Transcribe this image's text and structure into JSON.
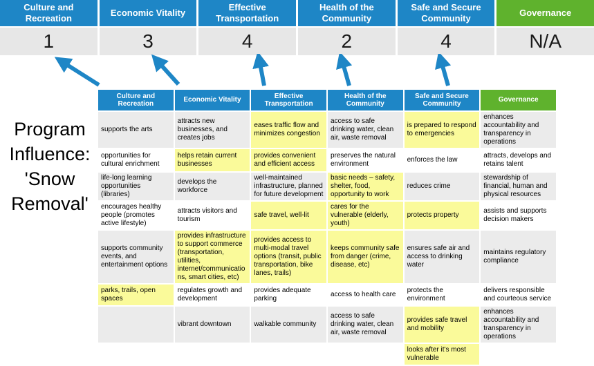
{
  "title": "Program Influence: 'Snow Removal'",
  "colors": {
    "header_blue": "#1E86C6",
    "governance_green": "#5FB22D",
    "highlight_yellow": "#FAFA9A",
    "stripe_gray": "#EBEBEB",
    "score_band_gray": "#E7E7E7",
    "arrow_blue": "#1E86C6"
  },
  "scoreband": {
    "columns": [
      {
        "label": "Culture and Recreation",
        "score": "1"
      },
      {
        "label": "Economic Vitality",
        "score": "3"
      },
      {
        "label": "Effective Transportation",
        "score": "4"
      },
      {
        "label": "Health of the Community",
        "score": "2"
      },
      {
        "label": "Safe and Secure Community",
        "score": "4"
      },
      {
        "label": "Governance",
        "score": "N/A"
      }
    ]
  },
  "table": {
    "headers": [
      {
        "label": "Culture and Recreation",
        "green": false
      },
      {
        "label": "Economic Vitality",
        "green": false
      },
      {
        "label": "Effective Transportation",
        "green": false
      },
      {
        "label": "Health of the Community",
        "green": false
      },
      {
        "label": "Safe and Secure Community",
        "green": false
      },
      {
        "label": "Governance",
        "green": true
      }
    ],
    "rows": [
      [
        {
          "t": "supports the arts"
        },
        {
          "t": "attracts new businesses, and creates jobs"
        },
        {
          "t": "eases traffic flow and minimizes congestion",
          "hl": true
        },
        {
          "t": "access to safe drinking water, clean air, waste removal"
        },
        {
          "t": "is prepared to respond to emergencies",
          "hl": true
        },
        {
          "t": "enhances accountability and transparency in operations"
        }
      ],
      [
        {
          "t": "opportunities for cultural enrichment"
        },
        {
          "t": "helps retain current businesses",
          "hl": true
        },
        {
          "t": "provides convenient and efficient access",
          "hl": true
        },
        {
          "t": "preserves the natural environment"
        },
        {
          "t": "enforces the law"
        },
        {
          "t": "attracts, develops and retains talent"
        }
      ],
      [
        {
          "t": "life-long learning opportunities (libraries)"
        },
        {
          "t": "develops the workforce"
        },
        {
          "t": "well-maintained infrastructure, planned for future development"
        },
        {
          "t": "basic needs – safety, shelter, food, opportunity to work",
          "hl": true
        },
        {
          "t": "reduces crime"
        },
        {
          "t": "stewardship of financial, human and physical resources"
        }
      ],
      [
        {
          "t": "encourages healthy people (promotes active lifestyle)"
        },
        {
          "t": "attracts visitors and tourism"
        },
        {
          "t": "safe travel, well-lit",
          "hl": true
        },
        {
          "t": "cares for the vulnerable (elderly, youth)",
          "hl": true
        },
        {
          "t": "protects property",
          "hl": true
        },
        {
          "t": "assists and supports decision makers"
        }
      ],
      [
        {
          "t": "supports community events, and entertainment options"
        },
        {
          "t": "provides infrastructure to support commerce (transportation, utilities, internet/communications, smart cities, etc)",
          "hl": true
        },
        {
          "t": "provides access to multi-modal travel options (transit, public transportation, bike lanes, trails)",
          "hl": true
        },
        {
          "t": "keeps community safe from danger (crime, disease, etc)",
          "hl": true
        },
        {
          "t": "ensures safe air and access to drinking water"
        },
        {
          "t": "maintains regulatory compliance"
        }
      ],
      [
        {
          "t": "parks, trails, open spaces",
          "hl": true
        },
        {
          "t": "regulates growth and development"
        },
        {
          "t": "provides adequate parking"
        },
        {
          "t": "access to health care"
        },
        {
          "t": "protects the environment"
        },
        {
          "t": "delivers responsible and courteous service"
        }
      ],
      [
        {
          "t": ""
        },
        {
          "t": "vibrant downtown"
        },
        {
          "t": "walkable community"
        },
        {
          "t": "access to safe drinking water, clean air, waste removal"
        },
        {
          "t": "provides safe travel and mobility",
          "hl": true
        },
        {
          "t": "enhances accountability and transparency in operations"
        }
      ],
      [
        {
          "t": ""
        },
        {
          "t": ""
        },
        {
          "t": ""
        },
        {
          "t": ""
        },
        {
          "t": "looks after it's most vulnerable",
          "hl": true
        },
        {
          "t": ""
        }
      ]
    ]
  }
}
